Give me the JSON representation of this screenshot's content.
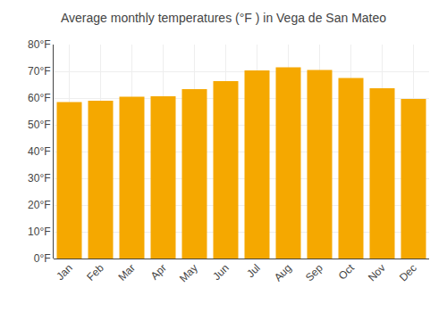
{
  "chart_data": {
    "type": "bar",
    "title": "Average monthly temperatures (°F ) in Vega de San Mateo",
    "categories": [
      "Jan",
      "Feb",
      "Mar",
      "Apr",
      "May",
      "Jun",
      "Jul",
      "Aug",
      "Sep",
      "Oct",
      "Nov",
      "Dec"
    ],
    "values": [
      58.5,
      59.0,
      60.5,
      60.7,
      63.3,
      66.3,
      70.3,
      71.5,
      70.5,
      67.5,
      63.7,
      59.7
    ],
    "color": "#F5A800",
    "ylim": [
      0,
      80
    ],
    "yticks": [
      {
        "value": 0,
        "label": "0°F"
      },
      {
        "value": 10,
        "label": "10°F"
      },
      {
        "value": 20,
        "label": "20°F"
      },
      {
        "value": 30,
        "label": "30°F"
      },
      {
        "value": 40,
        "label": "40°F"
      },
      {
        "value": 50,
        "label": "50°F"
      },
      {
        "value": 60,
        "label": "60°F"
      },
      {
        "value": 70,
        "label": "70°F"
      },
      {
        "value": 80,
        "label": "80°F"
      }
    ],
    "grid": true
  }
}
